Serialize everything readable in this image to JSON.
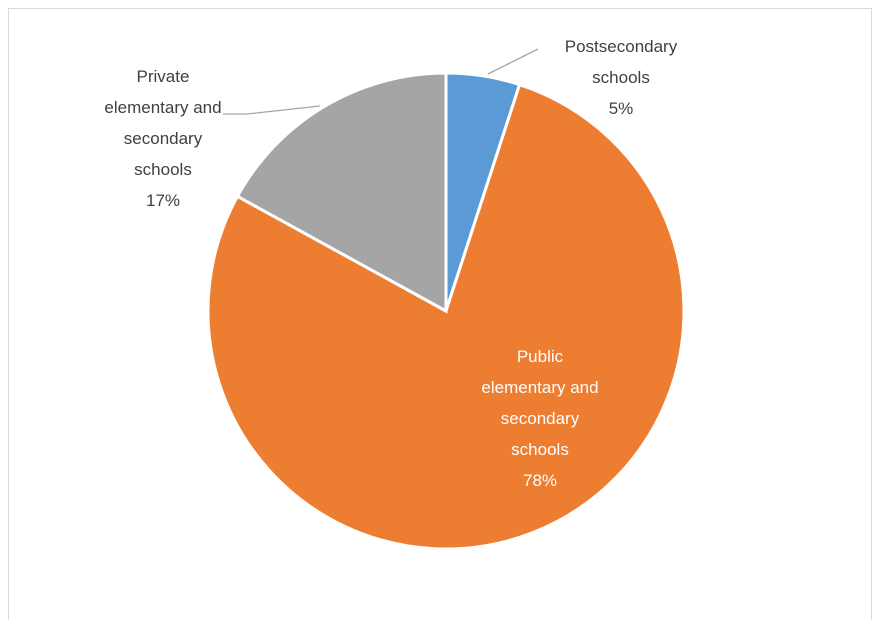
{
  "chart_data": {
    "type": "pie",
    "title": "",
    "slices": [
      {
        "label_lines": [
          "Postsecondary",
          "schools"
        ],
        "percent_label": "5%",
        "value": 5,
        "color": "#5b9bd5",
        "text_color": "#404040"
      },
      {
        "label_lines": [
          "Public",
          "elementary and",
          "secondary",
          "schools"
        ],
        "percent_label": "78%",
        "value": 78,
        "color": "#ed7d31",
        "text_color": "#ffffff"
      },
      {
        "label_lines": [
          "Private",
          "elementary and",
          "secondary",
          "schools"
        ],
        "percent_label": "17%",
        "value": 17,
        "color": "#a5a5a5",
        "text_color": "#404040"
      }
    ],
    "legend": "none"
  }
}
